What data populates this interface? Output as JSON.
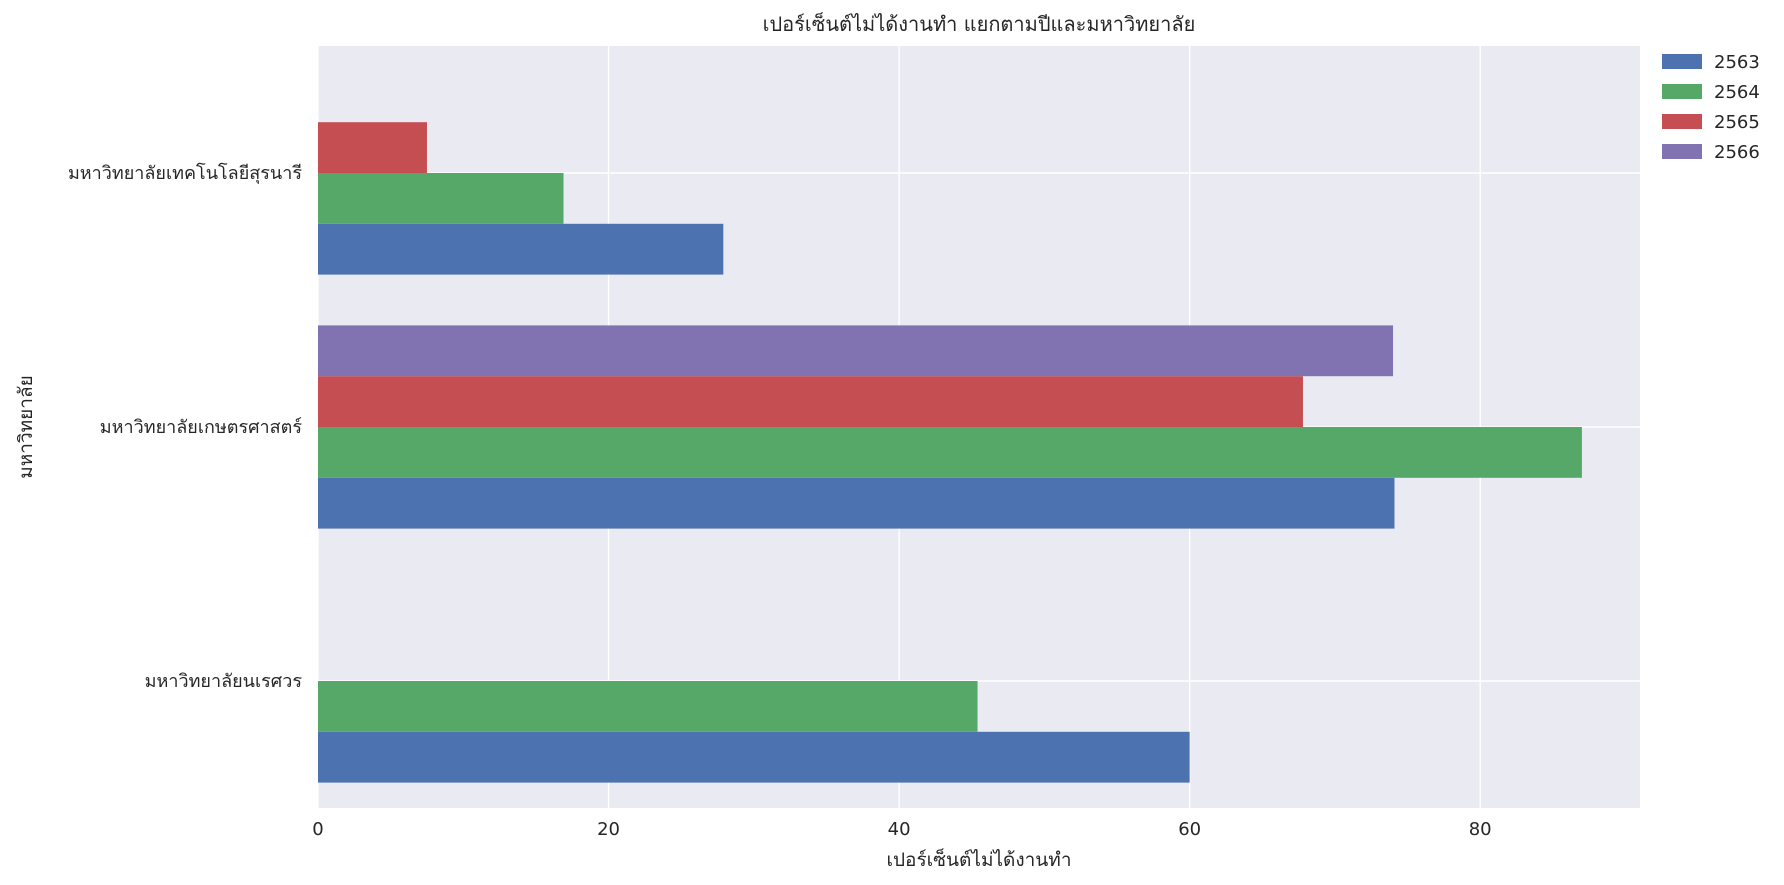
{
  "chart_data": {
    "type": "bar",
    "orientation": "horizontal",
    "title": "เปอร์เซ็นต์ไม่ได้งานทำ แยกตามปีและมหาวิทยาลัย",
    "xlabel": "เปอร์เซ็นต์ไม่ได้งานทำ",
    "ylabel": "มหาวิทยาลัย",
    "xlim": [
      0,
      91
    ],
    "xticks": [
      0,
      20,
      40,
      60,
      80
    ],
    "grid": true,
    "legend_position": "outside-top-right",
    "categories": [
      "มหาวิทยาลัยนเรศวร",
      "มหาวิทยาลัยเกษตรศาสตร์",
      "มหาวิทยาลัยเทคโนโลยีสุรนารี"
    ],
    "series": [
      {
        "name": "2563",
        "color": "#4c72b0",
        "values": [
          60.0,
          74.1,
          27.9
        ]
      },
      {
        "name": "2564",
        "color": "#55a868",
        "values": [
          45.4,
          87.0,
          16.9
        ]
      },
      {
        "name": "2565",
        "color": "#c44e52",
        "values": [
          null,
          67.8,
          7.5
        ]
      },
      {
        "name": "2566",
        "color": "#8172b2",
        "values": [
          null,
          74.0,
          null
        ]
      }
    ],
    "colors": {
      "plot_background": "#eaeaf2",
      "grid": "#ffffff",
      "text": "#262626"
    }
  }
}
